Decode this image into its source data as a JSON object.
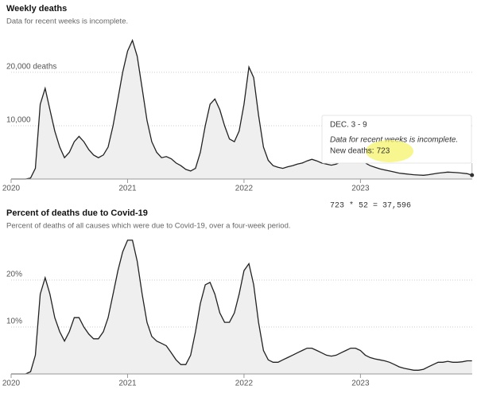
{
  "charts": [
    {
      "chart_data": {
        "type": "line",
        "title": "Weekly deaths",
        "subtitle": "Data for recent weeks is incomplete.",
        "x": [
          2020,
          2020.042,
          2020.083,
          2020.125,
          2020.167,
          2020.208,
          2020.25,
          2020.292,
          2020.333,
          2020.375,
          2020.417,
          2020.458,
          2020.5,
          2020.542,
          2020.583,
          2020.625,
          2020.667,
          2020.708,
          2020.75,
          2020.792,
          2020.833,
          2020.875,
          2020.917,
          2020.958,
          2021,
          2021.042,
          2021.083,
          2021.125,
          2021.167,
          2021.208,
          2021.25,
          2021.292,
          2021.333,
          2021.375,
          2021.417,
          2021.458,
          2021.5,
          2021.542,
          2021.583,
          2021.625,
          2021.667,
          2021.708,
          2021.75,
          2021.792,
          2021.833,
          2021.875,
          2021.917,
          2021.958,
          2022,
          2022.042,
          2022.083,
          2022.125,
          2022.167,
          2022.208,
          2022.25,
          2022.292,
          2022.333,
          2022.375,
          2022.417,
          2022.458,
          2022.5,
          2022.542,
          2022.583,
          2022.625,
          2022.667,
          2022.708,
          2022.75,
          2022.792,
          2022.833,
          2022.875,
          2022.917,
          2022.958,
          2023,
          2023.042,
          2023.083,
          2023.125,
          2023.167,
          2023.208,
          2023.25,
          2023.292,
          2023.333,
          2023.375,
          2023.417,
          2023.458,
          2023.5,
          2023.542,
          2023.583,
          2023.625,
          2023.667,
          2023.708,
          2023.75,
          2023.792,
          2023.833,
          2023.875,
          2023.917,
          2023.958
        ],
        "values": [
          0,
          0,
          0,
          0,
          200,
          2000,
          14000,
          17000,
          13000,
          9000,
          6000,
          4000,
          5000,
          7000,
          8000,
          7000,
          5500,
          4500,
          4000,
          4500,
          6000,
          10000,
          15000,
          20000,
          24000,
          26000,
          23000,
          17000,
          11000,
          7000,
          5000,
          4000,
          4200,
          3800,
          3000,
          2500,
          1800,
          1500,
          2000,
          5000,
          10000,
          14000,
          15000,
          13000,
          10000,
          7500,
          7000,
          9000,
          14000,
          21000,
          19000,
          12000,
          6000,
          3500,
          2500,
          2200,
          2000,
          2300,
          2500,
          2800,
          3000,
          3400,
          3700,
          3400,
          3000,
          2800,
          2600,
          2800,
          3200,
          3800,
          4000,
          4000,
          3800,
          3000,
          2500,
          2200,
          1900,
          1700,
          1500,
          1300,
          1100,
          1000,
          900,
          800,
          750,
          700,
          800,
          950,
          1100,
          1200,
          1300,
          1250,
          1200,
          1100,
          1000,
          723
        ],
        "color": "#222222",
        "fill": "#efefef",
        "xlim": [
          2020,
          2023.96
        ],
        "xticks": [
          2020,
          2021,
          2022,
          2023
        ],
        "ylim": [
          0,
          27000
        ],
        "yticks": [
          {
            "value": 10000,
            "label": "10,000"
          },
          {
            "value": 20000,
            "label": "20,000 deaths"
          }
        ],
        "grid": true,
        "tooltip": {
          "date": "DEC. 3 - 9",
          "note": "Data for recent weeks is incomplete.",
          "label": "New deaths:",
          "value": 723
        },
        "annotation": "723 * 52 = 37,596"
      }
    },
    {
      "chart_data": {
        "type": "line",
        "title": "Percent of deaths due to Covid-19",
        "subtitle": "Percent of deaths of all causes which were due to Covid-19, over a four-week period.",
        "x": [
          2020,
          2020.042,
          2020.083,
          2020.125,
          2020.167,
          2020.208,
          2020.25,
          2020.292,
          2020.333,
          2020.375,
          2020.417,
          2020.458,
          2020.5,
          2020.542,
          2020.583,
          2020.625,
          2020.667,
          2020.708,
          2020.75,
          2020.792,
          2020.833,
          2020.875,
          2020.917,
          2020.958,
          2021,
          2021.042,
          2021.083,
          2021.125,
          2021.167,
          2021.208,
          2021.25,
          2021.292,
          2021.333,
          2021.375,
          2021.417,
          2021.458,
          2021.5,
          2021.542,
          2021.583,
          2021.625,
          2021.667,
          2021.708,
          2021.75,
          2021.792,
          2021.833,
          2021.875,
          2021.917,
          2021.958,
          2022,
          2022.042,
          2022.083,
          2022.125,
          2022.167,
          2022.208,
          2022.25,
          2022.292,
          2022.333,
          2022.375,
          2022.417,
          2022.458,
          2022.5,
          2022.542,
          2022.583,
          2022.625,
          2022.667,
          2022.708,
          2022.75,
          2022.792,
          2022.833,
          2022.875,
          2022.917,
          2022.958,
          2023,
          2023.042,
          2023.083,
          2023.125,
          2023.167,
          2023.208,
          2023.25,
          2023.292,
          2023.333,
          2023.375,
          2023.417,
          2023.458,
          2023.5,
          2023.542,
          2023.583,
          2023.625,
          2023.667,
          2023.708,
          2023.75,
          2023.792,
          2023.833,
          2023.875,
          2023.917,
          2023.958
        ],
        "values": [
          0,
          0,
          0,
          0,
          0.5,
          4,
          17,
          20.5,
          17,
          12,
          9,
          7,
          9,
          12,
          12,
          10,
          8.5,
          7.5,
          7.5,
          9,
          12,
          17,
          22,
          26,
          28.5,
          28.5,
          24,
          17,
          11,
          8,
          7,
          6.5,
          6,
          4.5,
          3,
          2,
          2,
          4,
          9,
          15,
          19,
          19.5,
          17,
          13,
          11,
          11,
          13,
          17,
          22,
          23.5,
          19,
          11,
          5,
          3,
          2.5,
          2.5,
          3,
          3.5,
          4,
          4.5,
          5,
          5.5,
          5.5,
          5,
          4.5,
          4,
          3.8,
          4,
          4.5,
          5,
          5.5,
          5.5,
          5,
          4,
          3.5,
          3.2,
          3,
          2.8,
          2.5,
          2,
          1.5,
          1.2,
          1,
          0.8,
          0.8,
          1,
          1.5,
          2,
          2.5,
          2.5,
          2.7,
          2.5,
          2.5,
          2.6,
          2.8,
          2.8
        ],
        "color": "#222222",
        "fill": "#efefef",
        "xlim": [
          2020,
          2023.96
        ],
        "xticks": [
          2020,
          2021,
          2022,
          2023
        ],
        "ylim": [
          0,
          30
        ],
        "yticks": [
          {
            "value": 10,
            "label": "10%"
          },
          {
            "value": 20,
            "label": "20%"
          }
        ],
        "grid": true
      }
    }
  ]
}
